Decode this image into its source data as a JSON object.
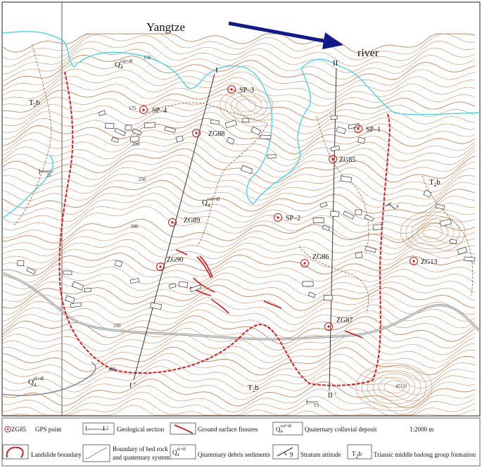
{
  "header": {
    "river_word_1": "Yangtze",
    "river_word_2": "river"
  },
  "sections": {
    "I_top": "I",
    "I_bottom": "I ’",
    "II_top": "II",
    "II_bottom": "II ’"
  },
  "gps_points": [
    {
      "id": "SP–3"
    },
    {
      "id": "SP–4"
    },
    {
      "id": "ZG88"
    },
    {
      "id": "SP–1"
    },
    {
      "id": "ZG85"
    },
    {
      "id": "SP–2"
    },
    {
      "id": "ZG89"
    },
    {
      "id": "ZG86"
    },
    {
      "id": "ZG90"
    },
    {
      "id": "ZG13"
    },
    {
      "id": "ZG87"
    }
  ],
  "formations": {
    "quaternary_colluvial_top": {
      "base": "Q",
      "sub": "4",
      "sup": "col+dl"
    },
    "quaternary_colluvial_mid": {
      "base": "Q",
      "sub": "4",
      "sup": "col+dl"
    },
    "quaternary_debris_bottom": {
      "base": "Q",
      "sub": "4",
      "sup": "el+dl"
    },
    "triassic_left": "T",
    "triassic_left_sub": "2",
    "triassic_left_suf": "b",
    "triassic_right": "T",
    "triassic_right_sub": "2",
    "triassic_right_suf": "b",
    "triassic_bottom": "T",
    "triassic_bottom_sub": "2",
    "triassic_bottom_suf": "b"
  },
  "elevations": {
    "e150": "150",
    "e175": "175",
    "e200": "200",
    "e250": "250",
    "e300": "300",
    "e350": "350",
    "e400": "400",
    "e451": "451.0"
  },
  "attitudes": {
    "a25": "25",
    "a9": "9",
    "a13": "13"
  },
  "legend": {
    "gps_symbol": "ZG85",
    "gps_label": "GPS  point",
    "section_symbol_a": "I",
    "section_symbol_b": "I ’",
    "section_label": "Geological section",
    "fissure_label": "Ground surface fissures",
    "colluvial_label": "Quaternary colluvial deposit",
    "scale_label": "1:2000 m",
    "landslide_label": "Landslide boundary",
    "boundary_label_1": "Boundary of bed rock",
    "boundary_label_2": "and quaternary system",
    "debris_label": "Quaternary debris sediments",
    "attitude_label": "Stratum attitude",
    "attitude_value": "9",
    "triassic_symbol": "T",
    "triassic_sub": "2",
    "triassic_suf": "b",
    "triassic_label": "Triassic middle badong group formation"
  },
  "colors": {
    "contour": "#c8865a",
    "river_line": "#47d6e6",
    "landslide": "#e01b1b",
    "arrow": "#111a8c",
    "river_text": "#1a26b0",
    "road": "#8c8c8c"
  }
}
